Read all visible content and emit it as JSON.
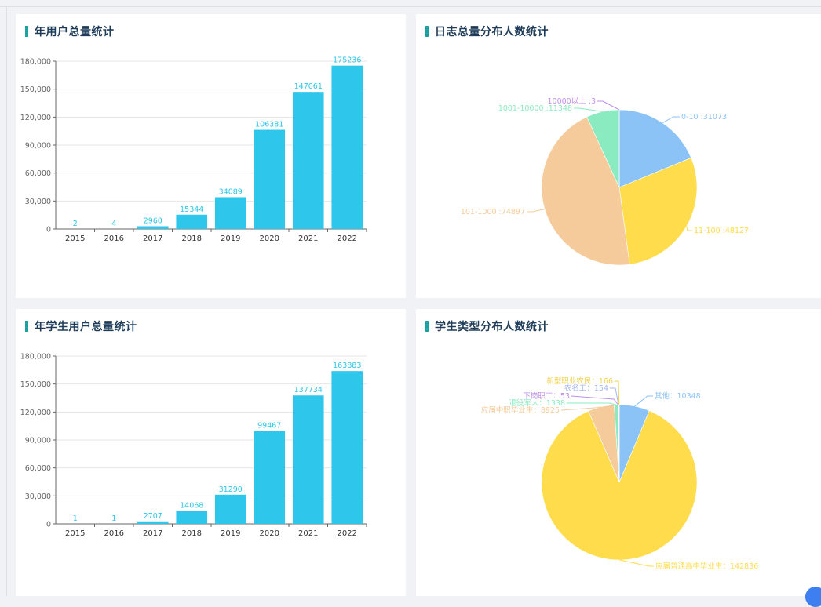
{
  "panels": {
    "p1": {
      "title": "年用户总量统计"
    },
    "p2": {
      "title": "日志总量分布人数统计"
    },
    "p3": {
      "title": "年学生用户总量统计"
    },
    "p4": {
      "title": "学生类型分布人数统计"
    }
  },
  "colors": {
    "bar": "#2ec6ea",
    "axis": "#666666",
    "grid": "#e6e6e6",
    "title_mark": "#19a3a3"
  },
  "chart_data": [
    {
      "type": "bar",
      "title": "年用户总量统计",
      "categories": [
        "2015",
        "2016",
        "2017",
        "2018",
        "2019",
        "2020",
        "2021",
        "2022"
      ],
      "values": [
        2,
        4,
        2960,
        15344,
        34089,
        106381,
        147061,
        175236
      ],
      "y_ticks": [
        "0",
        "30,000",
        "60,000",
        "90,000",
        "120,000",
        "150,000",
        "180,000"
      ],
      "ylim": [
        0,
        180000
      ],
      "grid": true
    },
    {
      "type": "pie",
      "title": "日志总量分布人数统计",
      "slices": [
        {
          "label": "0-10 :31073",
          "value": 31073,
          "color": "#8cc3f7"
        },
        {
          "label": "11-100 :48127",
          "value": 48127,
          "color": "#ffdc4c"
        },
        {
          "label": "101-1000 :74897",
          "value": 74897,
          "color": "#f5cb9b"
        },
        {
          "label": "1001-10000 :11348",
          "value": 11348,
          "color": "#8aebc0"
        },
        {
          "label": "10000以上 :3",
          "value": 3,
          "color": "#c08eea"
        }
      ]
    },
    {
      "type": "bar",
      "title": "年学生用户总量统计",
      "categories": [
        "2015",
        "2016",
        "2017",
        "2018",
        "2019",
        "2020",
        "2021",
        "2022"
      ],
      "values": [
        1,
        1,
        2707,
        14068,
        31290,
        99467,
        137734,
        163883
      ],
      "y_ticks": [
        "0",
        "30,000",
        "60,000",
        "90,000",
        "120,000",
        "150,000",
        "180,000"
      ],
      "ylim": [
        0,
        180000
      ],
      "grid": true
    },
    {
      "type": "pie",
      "title": "学生类型分布人数统计",
      "slices": [
        {
          "label": "其他：10348",
          "value": 10348,
          "color": "#8cc3f7"
        },
        {
          "label": "应届普通高中毕业生：142836",
          "value": 142836,
          "color": "#ffdc4c"
        },
        {
          "label": "应届中职毕业生：8925",
          "value": 8925,
          "color": "#f5cb9b"
        },
        {
          "label": "退役军人：1338",
          "value": 1338,
          "color": "#8aebc0"
        },
        {
          "label": "下岗职工：53",
          "value": 53,
          "color": "#c08eea"
        },
        {
          "label": "农名工：154",
          "value": 154,
          "color": "#a7b7f2"
        },
        {
          "label": "新型职业农民：166",
          "value": 166,
          "color": "#f0d24a"
        }
      ]
    }
  ]
}
